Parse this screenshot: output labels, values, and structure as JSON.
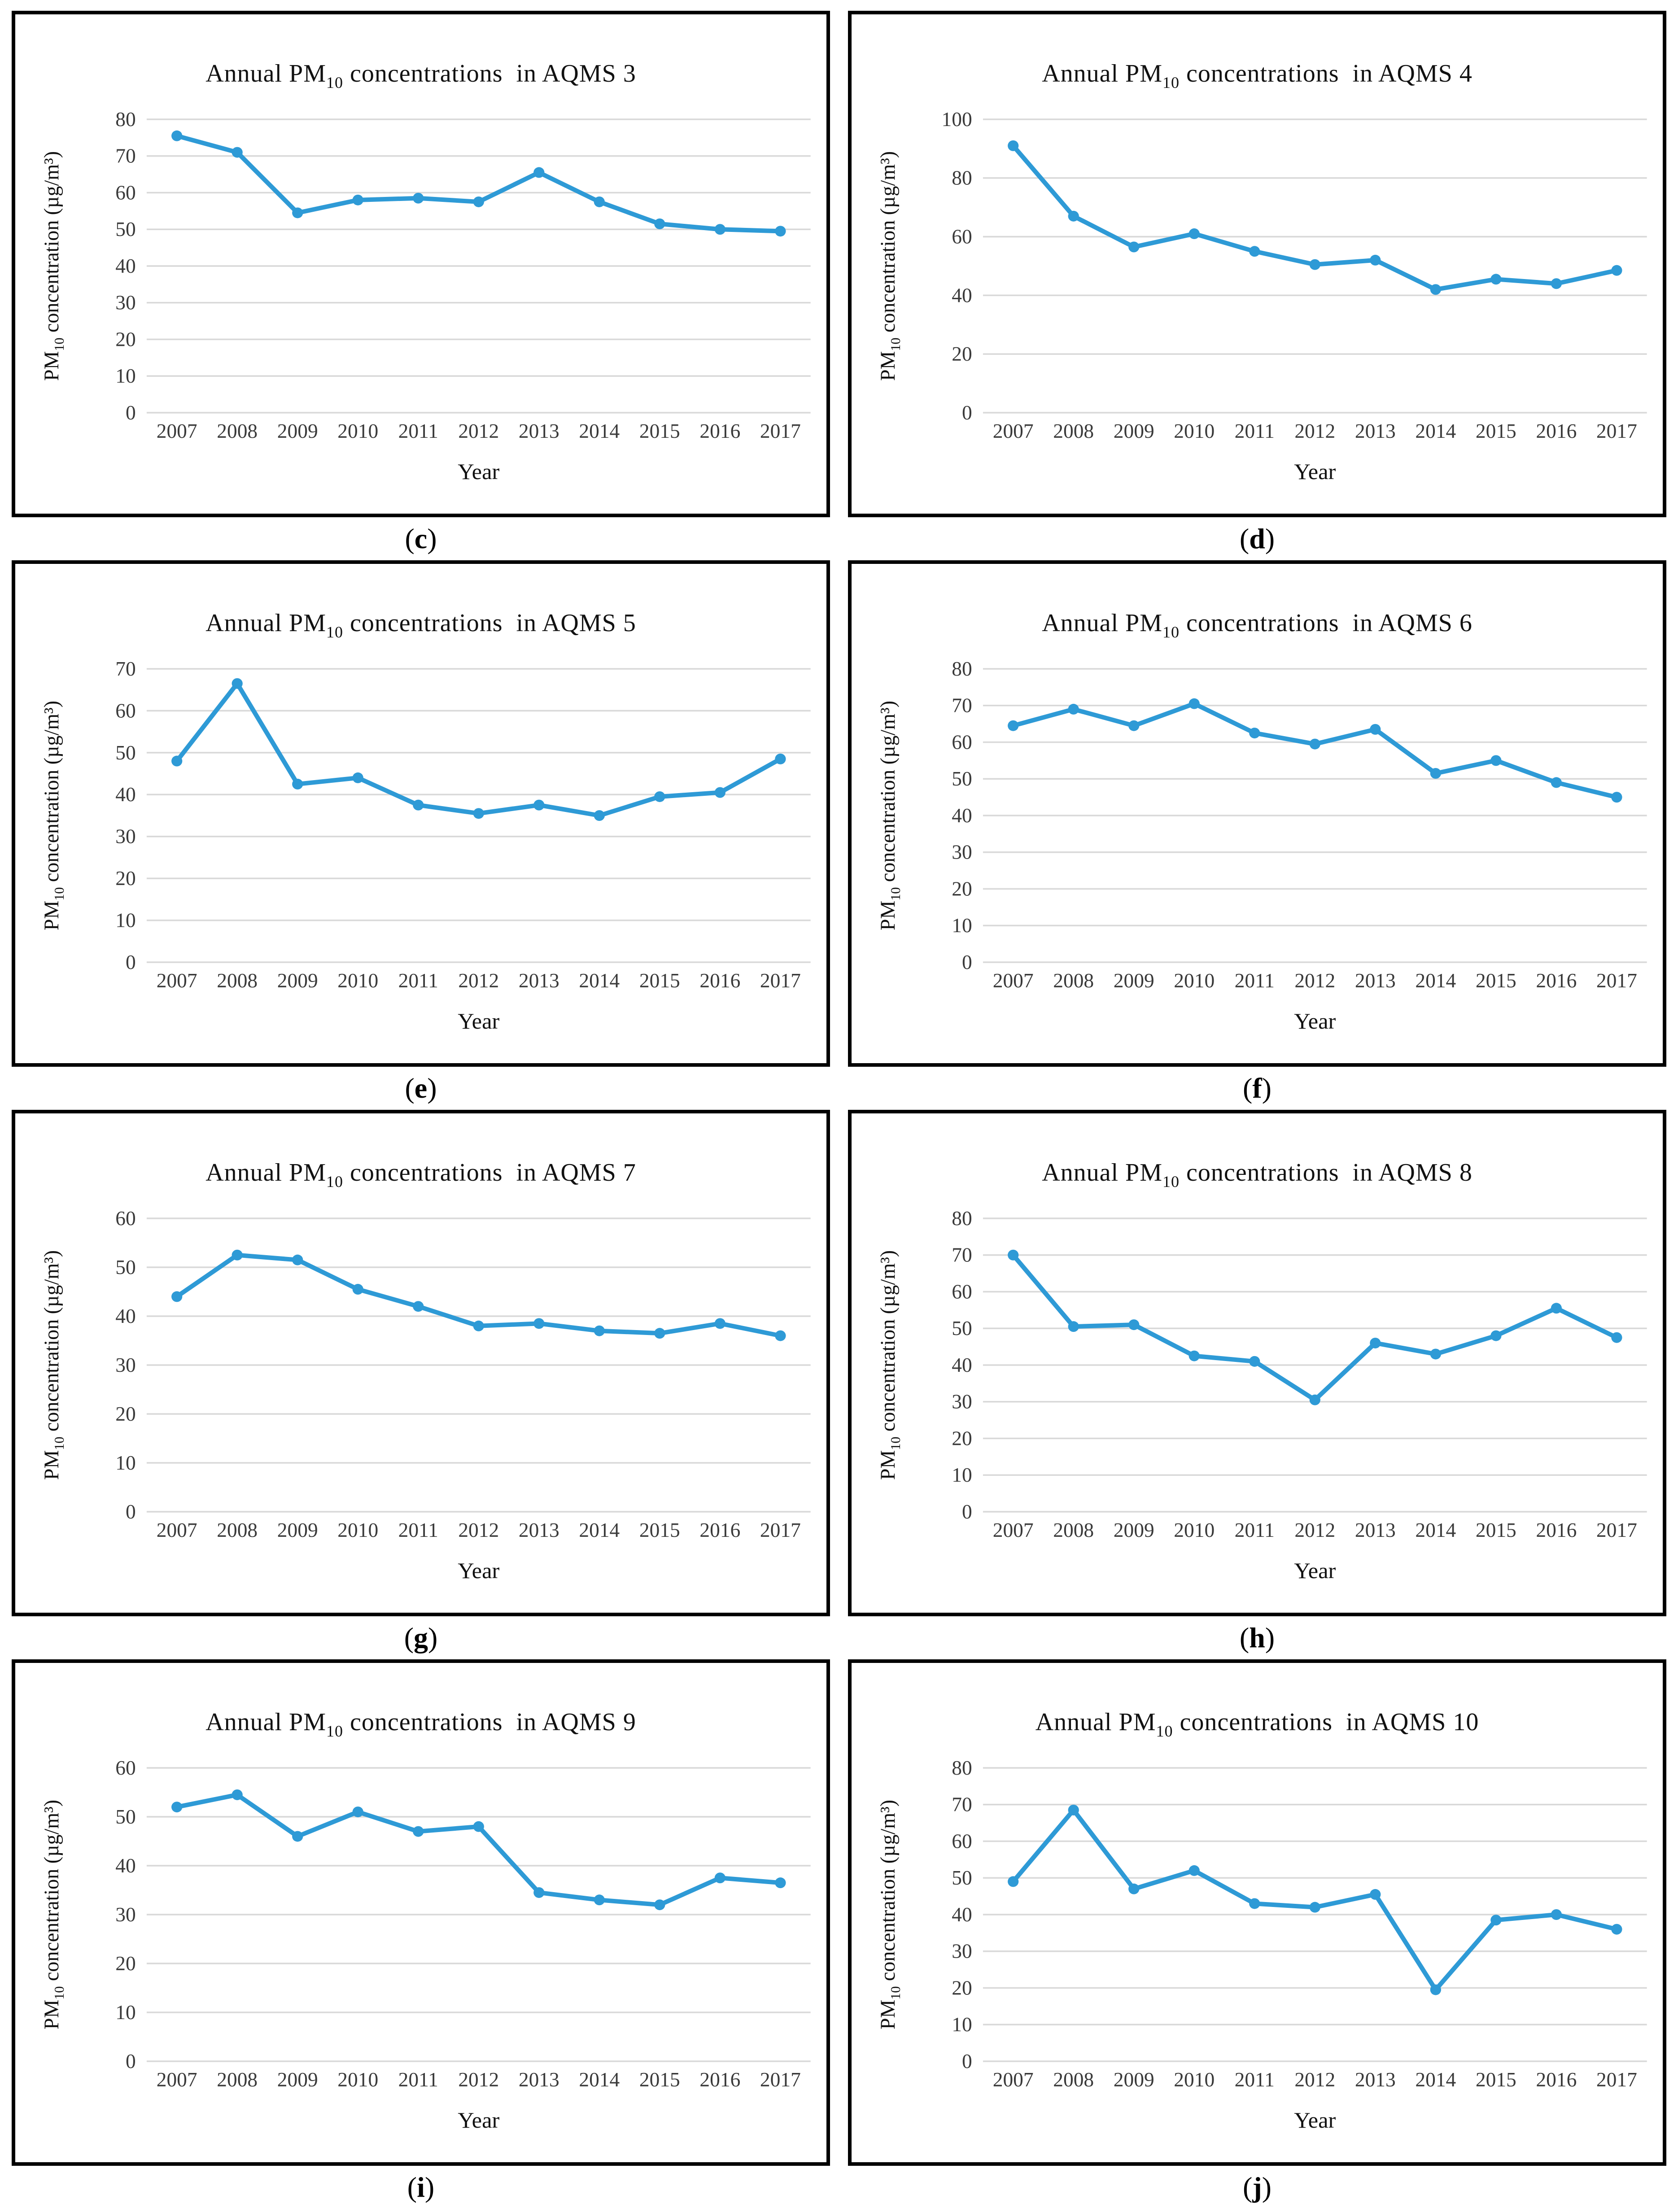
{
  "style": {
    "background": "#ffffff",
    "panel_border_color": "#000000",
    "line_color": "#2E9AD6",
    "grid_color": "#D9D9D9",
    "tick_color": "#3A3A3A",
    "text_color": "#111111",
    "panel_label_open": "(",
    "panel_label_close": ")"
  },
  "chart_data": [
    {
      "type": "line",
      "panel_label": "c",
      "title": {
        "prefix": "Annual PM",
        "sub": "10",
        "suffix": " concentrations  in AQMS 3"
      },
      "xlabel": "Year",
      "ylabel": {
        "prefix": "PM",
        "sub": "10",
        "suffix": " concentration (µg/m³)"
      },
      "categories": [
        "2007",
        "2008",
        "2009",
        "2010",
        "2011",
        "2012",
        "2013",
        "2014",
        "2015",
        "2016",
        "2017"
      ],
      "values": [
        75.5,
        71,
        54.5,
        58,
        58.5,
        57.5,
        65.5,
        57.5,
        51.5,
        50,
        49.5
      ],
      "ylim": [
        0,
        80
      ],
      "ytick_step": 10,
      "grid": true,
      "legend": "none"
    },
    {
      "type": "line",
      "panel_label": "d",
      "title": {
        "prefix": "Annual PM",
        "sub": "10",
        "suffix": " concentrations  in AQMS 4"
      },
      "xlabel": "Year",
      "ylabel": {
        "prefix": "PM",
        "sub": "10",
        "suffix": " concentration (µg/m³)"
      },
      "categories": [
        "2007",
        "2008",
        "2009",
        "2010",
        "2011",
        "2012",
        "2013",
        "2014",
        "2015",
        "2016",
        "2017"
      ],
      "values": [
        91,
        67,
        56.5,
        61,
        55,
        50.5,
        52,
        42,
        45.5,
        44,
        48.5
      ],
      "ylim": [
        0,
        100
      ],
      "ytick_step": 20,
      "grid": true,
      "legend": "none"
    },
    {
      "type": "line",
      "panel_label": "e",
      "title": {
        "prefix": "Annual PM",
        "sub": "10",
        "suffix": " concentrations  in AQMS 5"
      },
      "xlabel": "Year",
      "ylabel": {
        "prefix": "PM",
        "sub": "10",
        "suffix": " concentration (µg/m³)"
      },
      "categories": [
        "2007",
        "2008",
        "2009",
        "2010",
        "2011",
        "2012",
        "2013",
        "2014",
        "2015",
        "2016",
        "2017"
      ],
      "values": [
        48,
        66.5,
        42.5,
        44,
        37.5,
        35.5,
        37.5,
        35,
        39.5,
        40.5,
        48.5
      ],
      "ylim": [
        0,
        70
      ],
      "ytick_step": 10,
      "grid": true,
      "legend": "none"
    },
    {
      "type": "line",
      "panel_label": "f",
      "title": {
        "prefix": "Annual PM",
        "sub": "10",
        "suffix": " concentrations  in AQMS 6"
      },
      "xlabel": "Year",
      "ylabel": {
        "prefix": "PM",
        "sub": "10",
        "suffix": " concentration (µg/m³)"
      },
      "categories": [
        "2007",
        "2008",
        "2009",
        "2010",
        "2011",
        "2012",
        "2013",
        "2014",
        "2015",
        "2016",
        "2017"
      ],
      "values": [
        64.5,
        69,
        64.5,
        70.5,
        62.5,
        59.5,
        63.5,
        51.5,
        55,
        49,
        45
      ],
      "ylim": [
        0,
        80
      ],
      "ytick_step": 10,
      "grid": true,
      "legend": "none"
    },
    {
      "type": "line",
      "panel_label": "g",
      "title": {
        "prefix": "Annual PM",
        "sub": "10",
        "suffix": " concentrations  in AQMS 7"
      },
      "xlabel": "Year",
      "ylabel": {
        "prefix": "PM",
        "sub": "10",
        "suffix": " concentration (µg/m³)"
      },
      "categories": [
        "2007",
        "2008",
        "2009",
        "2010",
        "2011",
        "2012",
        "2013",
        "2014",
        "2015",
        "2016",
        "2017"
      ],
      "values": [
        44,
        52.5,
        51.5,
        45.5,
        42,
        38,
        38.5,
        37,
        36.5,
        38.5,
        36
      ],
      "ylim": [
        0,
        60
      ],
      "ytick_step": 10,
      "grid": true,
      "legend": "none"
    },
    {
      "type": "line",
      "panel_label": "h",
      "title": {
        "prefix": "Annual PM",
        "sub": "10",
        "suffix": " concentrations  in AQMS 8"
      },
      "xlabel": "Year",
      "ylabel": {
        "prefix": "PM",
        "sub": "10",
        "suffix": " concentration (µg/m³)"
      },
      "categories": [
        "2007",
        "2008",
        "2009",
        "2010",
        "2011",
        "2012",
        "2013",
        "2014",
        "2015",
        "2016",
        "2017"
      ],
      "values": [
        70,
        50.5,
        51,
        42.5,
        41,
        30.5,
        46,
        43,
        48,
        55.5,
        47.5
      ],
      "ylim": [
        0,
        80
      ],
      "ytick_step": 10,
      "grid": true,
      "legend": "none"
    },
    {
      "type": "line",
      "panel_label": "i",
      "title": {
        "prefix": "Annual PM",
        "sub": "10",
        "suffix": " concentrations  in AQMS 9"
      },
      "xlabel": "Year",
      "ylabel": {
        "prefix": "PM",
        "sub": "10",
        "suffix": " concentration (µg/m³)"
      },
      "categories": [
        "2007",
        "2008",
        "2009",
        "2010",
        "2011",
        "2012",
        "2013",
        "2014",
        "2015",
        "2016",
        "2017"
      ],
      "values": [
        52,
        54.5,
        46,
        51,
        47,
        48,
        34.5,
        33,
        32,
        37.5,
        36.5
      ],
      "ylim": [
        0,
        60
      ],
      "ytick_step": 10,
      "grid": true,
      "legend": "none"
    },
    {
      "type": "line",
      "panel_label": "j",
      "title": {
        "prefix": "Annual PM",
        "sub": "10",
        "suffix": " concentrations  in AQMS 10"
      },
      "xlabel": "Year",
      "ylabel": {
        "prefix": "PM",
        "sub": "10",
        "suffix": " concentration (µg/m³)"
      },
      "categories": [
        "2007",
        "2008",
        "2009",
        "2010",
        "2011",
        "2012",
        "2013",
        "2014",
        "2015",
        "2016",
        "2017"
      ],
      "values": [
        49,
        68.5,
        47,
        52,
        43,
        42,
        45.5,
        19.5,
        38.5,
        40,
        36
      ],
      "ylim": [
        0,
        80
      ],
      "ytick_step": 10,
      "grid": true,
      "legend": "none"
    }
  ]
}
